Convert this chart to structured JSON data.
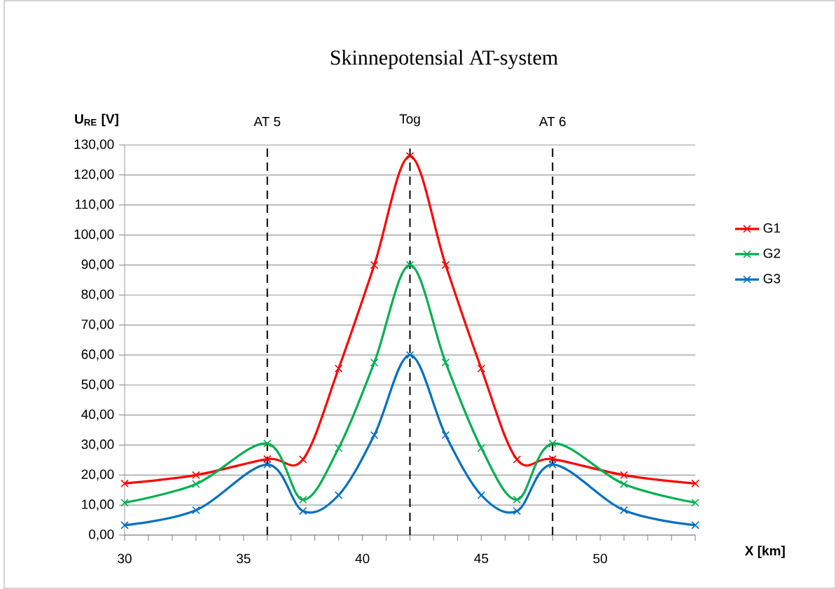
{
  "chart_data": {
    "type": "line",
    "title": "Skinnepotensial AT-system",
    "xlabel": "**X [km]**",
    "ylabel": "**U$_{RE}$ [V]**",
    "x": [
      30,
      33,
      36,
      37.5,
      39,
      40.5,
      42,
      43.5,
      45,
      46.5,
      48,
      51,
      54
    ],
    "series": [
      {
        "name": "G1",
        "color": "#ff0000",
        "values": [
          17.2,
          20,
          25.3,
          25.2,
          55.5,
          90,
          126.3,
          90,
          55.5,
          25.2,
          25.3,
          20,
          17.2
        ]
      },
      {
        "name": "G2",
        "color": "#00b050",
        "values": [
          10.8,
          17,
          30.5,
          11.8,
          29,
          57.5,
          90,
          57.5,
          29,
          11.8,
          30.5,
          17,
          10.8
        ]
      },
      {
        "name": "G3",
        "color": "#0070c0",
        "values": [
          3.3,
          8.3,
          23.5,
          8,
          13.3,
          33.3,
          60,
          33.3,
          13.3,
          8,
          23.5,
          8.3,
          3.3
        ]
      }
    ],
    "xlim": [
      30,
      54
    ],
    "xticks": [
      30,
      {
        "value": 31,
        "label": null
      },
      {
        "value": 32,
        "label": null
      },
      {
        "value": 33,
        "label": null
      },
      {
        "value": 34,
        "label": null
      },
      35,
      {
        "value": 36,
        "label": null
      },
      {
        "value": 37,
        "label": null
      },
      {
        "value": 38,
        "label": null
      },
      {
        "value": 39,
        "label": null
      },
      40,
      {
        "value": 41,
        "label": null
      },
      {
        "value": 42,
        "label": null
      },
      {
        "value": 43,
        "label": null
      },
      {
        "value": 44,
        "label": null
      },
      45,
      {
        "value": 46,
        "label": null
      },
      {
        "value": 47,
        "label": null
      },
      {
        "value": 48,
        "label": null
      },
      {
        "value": 49,
        "label": null
      },
      50,
      {
        "value": 51,
        "label": null
      },
      {
        "value": 52,
        "label": null
      },
      {
        "value": 53,
        "label": null
      },
      {
        "value": 54,
        "label": null
      }
    ],
    "ylim": [
      0,
      130
    ],
    "yticks": [
      {
        "value": 0,
        "label": "0,00"
      },
      {
        "value": 10,
        "label": "10,00"
      },
      {
        "value": 20,
        "label": "20,00"
      },
      {
        "value": 30,
        "label": "30,00"
      },
      {
        "value": 40,
        "label": "40,00"
      },
      {
        "value": 50,
        "label": "50,00"
      },
      {
        "value": 60,
        "label": "60,00"
      },
      {
        "value": 70,
        "label": "70,00"
      },
      {
        "value": 80,
        "label": "80,00"
      },
      {
        "value": 90,
        "label": "90,00"
      },
      {
        "value": 100,
        "label": "100,00"
      },
      {
        "value": 110,
        "label": "110,00"
      },
      {
        "value": 120,
        "label": "120,00"
      },
      {
        "value": 130,
        "label": "130,00"
      }
    ],
    "ref_lines": [
      {
        "axis": "x",
        "value": 36,
        "label": "AT 5",
        "color": "#000000",
        "line_style": "dashed"
      },
      {
        "axis": "x",
        "value": 42,
        "label": "Tog",
        "color": "#000000",
        "line_style": "dashed"
      },
      {
        "axis": "x",
        "value": 48,
        "label": "AT 6",
        "color": "#000000",
        "line_style": "dashed"
      }
    ],
    "grid": "y",
    "legend": "right",
    "marker": "cross",
    "line_style": "solid"
  }
}
